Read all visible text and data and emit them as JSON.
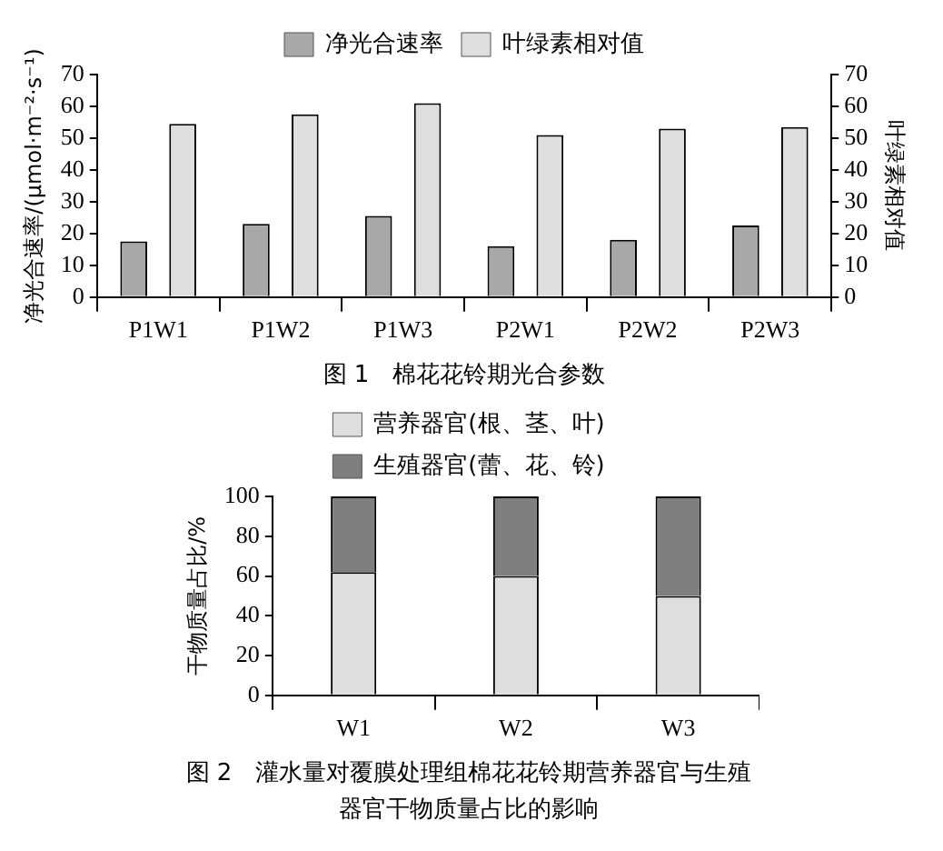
{
  "chart_data": [
    {
      "type": "bar",
      "categories": [
        "P1W1",
        "P1W2",
        "P1W3",
        "P2W1",
        "P2W2",
        "P2W3"
      ],
      "ylabel": "净光合速率/(μmol·m⁻²·s⁻¹)",
      "y2label": "叶绿素相对值",
      "series": [
        {
          "name": "净光合速率",
          "color": "#a8a8a8",
          "values": [
            17.5,
            23,
            25.5,
            16,
            18,
            22.5
          ]
        },
        {
          "name": "叶绿素相对值",
          "color": "#dedede",
          "axis": "y2",
          "values": [
            54.5,
            57.5,
            61,
            51,
            53,
            53.5
          ]
        }
      ],
      "ylim": [
        0,
        70
      ],
      "yticks": [
        0,
        10,
        20,
        30,
        40,
        50,
        60,
        70
      ],
      "y2lim": [
        0,
        70
      ],
      "y2ticks": [
        0,
        10,
        20,
        30,
        40,
        50,
        60,
        70
      ],
      "grid": false,
      "legend": "top",
      "annotations": [
        "图 1　棉花花铃期光合参数"
      ]
    },
    {
      "type": "bar",
      "stacked": true,
      "categories": [
        "W1",
        "W2",
        "W3"
      ],
      "ylabel": "干物质量占比/%",
      "series": [
        {
          "name": "营养器官(根、茎、叶)",
          "color": "#dedede",
          "values": [
            62,
            60,
            50
          ]
        },
        {
          "name": "生殖器官(蕾、花、铃)",
          "color": "#7f7f7f",
          "values": [
            38,
            40,
            50
          ]
        }
      ],
      "ylim": [
        0,
        100
      ],
      "yticks": [
        0,
        20,
        40,
        60,
        80,
        100
      ],
      "grid": false,
      "legend": "top",
      "annotations": [
        "图 2　灌水量对覆膜处理组棉花花铃期营养器官与生殖器官干物质量占比的影响"
      ]
    }
  ]
}
